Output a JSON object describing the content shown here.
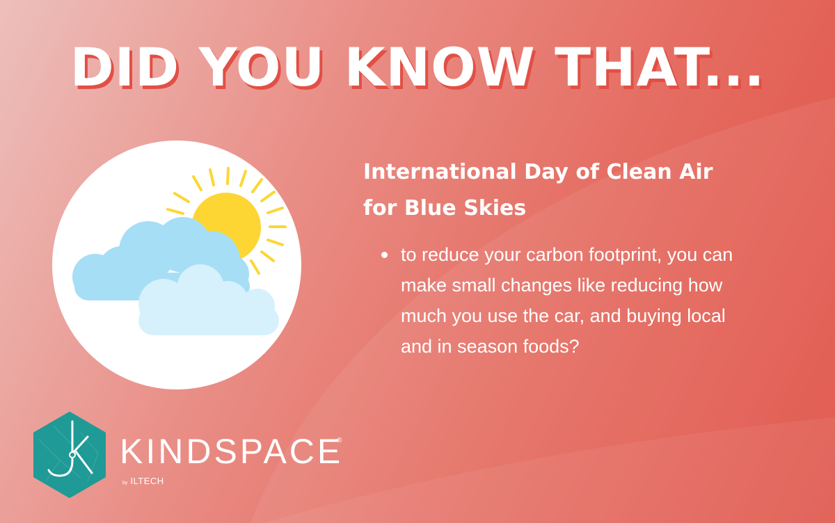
{
  "headline": "DID YOU KNOW THAT...",
  "subtitle": "International Day of Clean Air for Blue Skies",
  "bullets": [
    "to reduce your carbon footprint, you can make small changes like reducing how much you use the car, and buying local and in season foods?"
  ],
  "illustration": {
    "icon": "sun-behind-clouds-icon"
  },
  "brand": {
    "name": "KINDSPACE",
    "registered_mark": "®",
    "by_label": "by",
    "by_name": "ILTECH",
    "logo_icon": "hexagon-k-logo-icon"
  },
  "colors": {
    "background_start": "#edbfbb",
    "background_end": "#df4f44",
    "headline_shadow": "#e24f45",
    "logo_teal": "#1f9a96",
    "sun": "#fdd634",
    "cloud_back": "#a6def5",
    "cloud_front": "#d6f1fc"
  }
}
